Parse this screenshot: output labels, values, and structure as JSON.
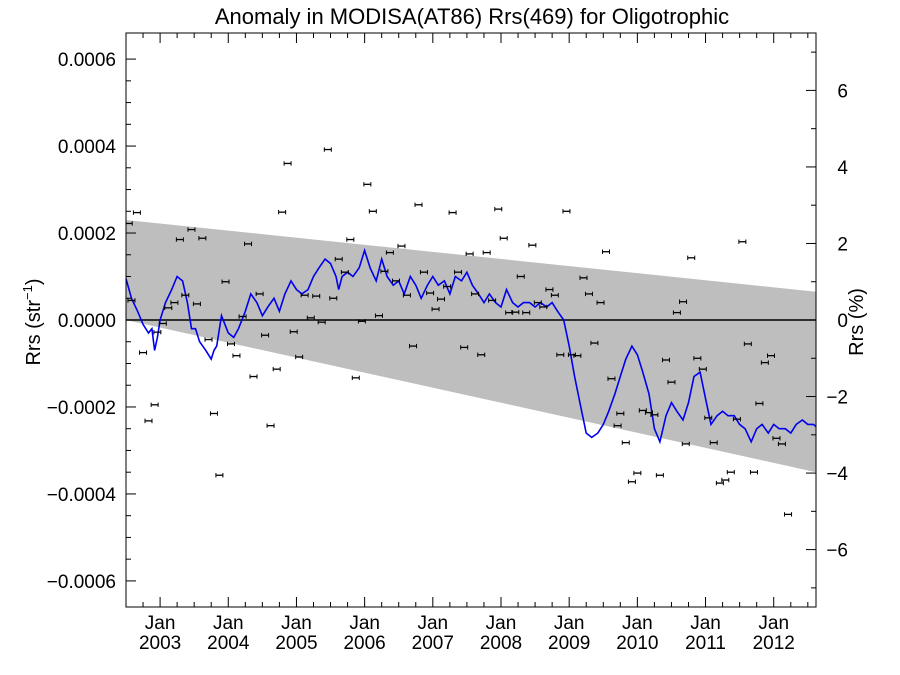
{
  "chart_data": {
    "type": "scatter",
    "title": "Anomaly in MODISA(AT86) Rrs(469) for Oligotrophic",
    "ylabel_left": {
      "base": "Rrs (str",
      "sup": "−1",
      "tail": ")"
    },
    "ylabel_right": "Rrs (%)",
    "xlim": [
      2002.5,
      2012.62
    ],
    "ylim_left": [
      -0.00066,
      0.00066
    ],
    "ylim_right": [
      -7.5,
      7.5
    ],
    "left_ticks": [
      {
        "value": 0.0006,
        "label": "0.0006"
      },
      {
        "value": 0.0004,
        "label": "0.0004"
      },
      {
        "value": 0.0002,
        "label": "0.0002"
      },
      {
        "value": 0.0,
        "label": "0.0000"
      },
      {
        "value": -0.0002,
        "label": "−0.0002"
      },
      {
        "value": -0.0004,
        "label": "−0.0004"
      },
      {
        "value": -0.0006,
        "label": "−0.0006"
      }
    ],
    "right_ticks": [
      {
        "value": 6,
        "label": "6"
      },
      {
        "value": 4,
        "label": "4"
      },
      {
        "value": 2,
        "label": "2"
      },
      {
        "value": 0,
        "label": "0"
      },
      {
        "value": -2,
        "label": "−2"
      },
      {
        "value": -4,
        "label": "−4"
      },
      {
        "value": -6,
        "label": "−6"
      }
    ],
    "x_ticks": [
      {
        "value": 2003.0,
        "month": "Jan",
        "year": "2003"
      },
      {
        "value": 2004.0,
        "month": "Jan",
        "year": "2004"
      },
      {
        "value": 2005.0,
        "month": "Jan",
        "year": "2005"
      },
      {
        "value": 2006.0,
        "month": "Jan",
        "year": "2006"
      },
      {
        "value": 2007.0,
        "month": "Jan",
        "year": "2007"
      },
      {
        "value": 2008.0,
        "month": "Jan",
        "year": "2008"
      },
      {
        "value": 2009.0,
        "month": "Jan",
        "year": "2009"
      },
      {
        "value": 2010.0,
        "month": "Jan",
        "year": "2010"
      },
      {
        "value": 2011.0,
        "month": "Jan",
        "year": "2011"
      },
      {
        "value": 2012.0,
        "month": "Jan",
        "year": "2012"
      }
    ],
    "zero_line": 0.0,
    "shaded_band": {
      "x": [
        2002.5,
        2012.62
      ],
      "upper": [
        0.00023,
        6.5e-05
      ],
      "lower": [
        0.0,
        -0.00035
      ]
    },
    "series": [
      {
        "kind": "points_with_errorbars",
        "points": [
          [
            2002.54,
            0.000222
          ],
          [
            2002.58,
            4.5e-05
          ],
          [
            2002.66,
            0.000247
          ],
          [
            2002.75,
            -7.5e-05
          ],
          [
            2002.83,
            -0.000232
          ],
          [
            2002.92,
            -0.000195
          ],
          [
            2002.96,
            -2.8e-05
          ],
          [
            2003.04,
            -8e-06
          ],
          [
            2003.12,
            2.8e-05
          ],
          [
            2003.21,
            4e-05
          ],
          [
            2003.29,
            0.000185
          ],
          [
            2003.37,
            5.7e-05
          ],
          [
            2003.46,
            0.000208
          ],
          [
            2003.54,
            3.7e-05
          ],
          [
            2003.62,
            0.000188
          ],
          [
            2003.71,
            -4.5e-05
          ],
          [
            2003.79,
            -0.000215
          ],
          [
            2003.87,
            -0.000357
          ],
          [
            2003.96,
            8.8e-05
          ],
          [
            2004.04,
            -5.5e-05
          ],
          [
            2004.12,
            -8.2e-05
          ],
          [
            2004.21,
            8e-06
          ],
          [
            2004.29,
            0.000175
          ],
          [
            2004.37,
            -0.00013
          ],
          [
            2004.46,
            6e-05
          ],
          [
            2004.54,
            -3.5e-05
          ],
          [
            2004.62,
            -0.000243
          ],
          [
            2004.71,
            -0.000113
          ],
          [
            2004.79,
            0.000248
          ],
          [
            2004.87,
            0.00036
          ],
          [
            2004.96,
            -2.7e-05
          ],
          [
            2005.04,
            -8.5e-05
          ],
          [
            2005.12,
            5.7e-05
          ],
          [
            2005.21,
            5e-06
          ],
          [
            2005.29,
            5.5e-05
          ],
          [
            2005.37,
            -5e-06
          ],
          [
            2005.46,
            0.000392
          ],
          [
            2005.54,
            5e-05
          ],
          [
            2005.62,
            0.00014
          ],
          [
            2005.71,
            0.00011
          ],
          [
            2005.79,
            0.000185
          ],
          [
            2005.87,
            -0.000133
          ],
          [
            2005.96,
            -3e-06
          ],
          [
            2006.04,
            0.000312
          ],
          [
            2006.12,
            0.00025
          ],
          [
            2006.21,
            1e-05
          ],
          [
            2006.29,
            0.000112
          ],
          [
            2006.37,
            0.000155
          ],
          [
            2006.46,
            9e-05
          ],
          [
            2006.54,
            0.00017
          ],
          [
            2006.62,
            5.7e-05
          ],
          [
            2006.71,
            -6e-05
          ],
          [
            2006.79,
            0.000265
          ],
          [
            2006.87,
            0.00011
          ],
          [
            2006.96,
            6.2e-05
          ],
          [
            2007.04,
            2.5e-05
          ],
          [
            2007.12,
            4.8e-05
          ],
          [
            2007.21,
            7.7e-05
          ],
          [
            2007.29,
            0.000247
          ],
          [
            2007.37,
            0.00011
          ],
          [
            2007.46,
            -6.3e-05
          ],
          [
            2007.54,
            0.000152
          ],
          [
            2007.62,
            6e-05
          ],
          [
            2007.71,
            -8e-05
          ],
          [
            2007.79,
            0.000155
          ],
          [
            2007.87,
            4.5e-05
          ],
          [
            2007.96,
            0.000255
          ],
          [
            2008.04,
            0.000188
          ],
          [
            2008.12,
            1.7e-05
          ],
          [
            2008.21,
            1.8e-05
          ],
          [
            2008.29,
            0.0001
          ],
          [
            2008.37,
            1.7e-05
          ],
          [
            2008.46,
            0.000172
          ],
          [
            2008.54,
            4e-05
          ],
          [
            2008.62,
            3e-05
          ],
          [
            2008.71,
            7e-05
          ],
          [
            2008.79,
            5.7e-05
          ],
          [
            2008.87,
            -8e-05
          ],
          [
            2008.96,
            0.00025
          ],
          [
            2009.04,
            -8e-05
          ],
          [
            2009.12,
            -8.2e-05
          ],
          [
            2009.21,
            9.7e-05
          ],
          [
            2009.29,
            6e-05
          ],
          [
            2009.37,
            -5.3e-05
          ],
          [
            2009.46,
            4e-05
          ],
          [
            2009.54,
            0.000157
          ],
          [
            2009.62,
            -0.000135
          ],
          [
            2009.71,
            -0.000243
          ],
          [
            2009.75,
            -0.000215
          ],
          [
            2009.83,
            -0.000282
          ],
          [
            2009.92,
            -0.000372
          ],
          [
            2010.0,
            -0.000352
          ],
          [
            2010.08,
            -0.000208
          ],
          [
            2010.17,
            -0.000213
          ],
          [
            2010.25,
            -0.000218
          ],
          [
            2010.33,
            -0.000357
          ],
          [
            2010.42,
            -9.2e-05
          ],
          [
            2010.5,
            -0.000143
          ],
          [
            2010.58,
            1.7e-05
          ],
          [
            2010.67,
            4.2e-05
          ],
          [
            2010.71,
            -0.000285
          ],
          [
            2010.79,
            0.000143
          ],
          [
            2010.88,
            -8.8e-05
          ],
          [
            2010.96,
            -0.000113
          ],
          [
            2011.04,
            -0.000225
          ],
          [
            2011.12,
            -0.000282
          ],
          [
            2011.21,
            -0.000375
          ],
          [
            2011.29,
            -0.000368
          ],
          [
            2011.37,
            -0.00035
          ],
          [
            2011.46,
            -0.000228
          ],
          [
            2011.54,
            0.00018
          ],
          [
            2011.62,
            -5.5e-05
          ],
          [
            2011.71,
            -0.00035
          ],
          [
            2011.79,
            -0.000192
          ],
          [
            2011.87,
            -9.8e-05
          ],
          [
            2011.96,
            -8.2e-05
          ],
          [
            2012.04,
            -0.000272
          ],
          [
            2012.12,
            -0.000285
          ],
          [
            2012.21,
            -0.000447
          ]
        ]
      },
      {
        "kind": "smoothed_line",
        "color": "#0000ee",
        "points": [
          [
            2002.5,
            9.5e-05
          ],
          [
            2002.58,
            5e-05
          ],
          [
            2002.67,
            2e-05
          ],
          [
            2002.75,
            -1e-05
          ],
          [
            2002.83,
            -3e-05
          ],
          [
            2002.88,
            -2e-05
          ],
          [
            2002.92,
            -7e-05
          ],
          [
            2002.96,
            -4e-05
          ],
          [
            2003.0,
            0.0
          ],
          [
            2003.04,
            2e-05
          ],
          [
            2003.08,
            4e-05
          ],
          [
            2003.17,
            7e-05
          ],
          [
            2003.25,
            0.0001
          ],
          [
            2003.33,
            9e-05
          ],
          [
            2003.4,
            4e-05
          ],
          [
            2003.46,
            -2e-05
          ],
          [
            2003.52,
            -2e-05
          ],
          [
            2003.58,
            -5e-05
          ],
          [
            2003.67,
            -7e-05
          ],
          [
            2003.75,
            -9e-05
          ],
          [
            2003.79,
            -7e-05
          ],
          [
            2003.83,
            -6e-05
          ],
          [
            2003.9,
            1e-05
          ],
          [
            2004.0,
            -3e-05
          ],
          [
            2004.08,
            -4e-05
          ],
          [
            2004.15,
            -2e-05
          ],
          [
            2004.25,
            2e-05
          ],
          [
            2004.33,
            6e-05
          ],
          [
            2004.42,
            4e-05
          ],
          [
            2004.5,
            1e-05
          ],
          [
            2004.58,
            3e-05
          ],
          [
            2004.67,
            5e-05
          ],
          [
            2004.75,
            2e-05
          ],
          [
            2004.83,
            6e-05
          ],
          [
            2004.92,
            9e-05
          ],
          [
            2005.0,
            7e-05
          ],
          [
            2005.08,
            6e-05
          ],
          [
            2005.17,
            7e-05
          ],
          [
            2005.25,
            0.0001
          ],
          [
            2005.33,
            0.00012
          ],
          [
            2005.42,
            0.00014
          ],
          [
            2005.5,
            0.00013
          ],
          [
            2005.58,
            0.0001
          ],
          [
            2005.62,
            7e-05
          ],
          [
            2005.67,
            0.0001
          ],
          [
            2005.75,
            0.00011
          ],
          [
            2005.83,
            0.0001
          ],
          [
            2005.92,
            0.00012
          ],
          [
            2006.0,
            0.00016
          ],
          [
            2006.08,
            0.00012
          ],
          [
            2006.17,
            9e-05
          ],
          [
            2006.25,
            0.00014
          ],
          [
            2006.33,
            0.0001
          ],
          [
            2006.42,
            8e-05
          ],
          [
            2006.5,
            9e-05
          ],
          [
            2006.58,
            6e-05
          ],
          [
            2006.67,
            0.0001
          ],
          [
            2006.75,
            8e-05
          ],
          [
            2006.83,
            5e-05
          ],
          [
            2006.92,
            8e-05
          ],
          [
            2007.0,
            0.0001
          ],
          [
            2007.08,
            8e-05
          ],
          [
            2007.17,
            9e-05
          ],
          [
            2007.25,
            6e-05
          ],
          [
            2007.33,
            0.0001
          ],
          [
            2007.42,
            9e-05
          ],
          [
            2007.5,
            0.00011
          ],
          [
            2007.58,
            8e-05
          ],
          [
            2007.67,
            6e-05
          ],
          [
            2007.75,
            4e-05
          ],
          [
            2007.83,
            6e-05
          ],
          [
            2007.92,
            4e-05
          ],
          [
            2008.0,
            3e-05
          ],
          [
            2008.08,
            7e-05
          ],
          [
            2008.17,
            4e-05
          ],
          [
            2008.25,
            3e-05
          ],
          [
            2008.33,
            4e-05
          ],
          [
            2008.42,
            4e-05
          ],
          [
            2008.5,
            3e-05
          ],
          [
            2008.58,
            4e-05
          ],
          [
            2008.67,
            3e-05
          ],
          [
            2008.75,
            4e-05
          ],
          [
            2008.83,
            2e-05
          ],
          [
            2008.92,
            0.0
          ],
          [
            2009.0,
            -6e-05
          ],
          [
            2009.08,
            -0.00013
          ],
          [
            2009.17,
            -0.0002
          ],
          [
            2009.25,
            -0.00026
          ],
          [
            2009.33,
            -0.00027
          ],
          [
            2009.42,
            -0.00026
          ],
          [
            2009.5,
            -0.00024
          ],
          [
            2009.58,
            -0.00021
          ],
          [
            2009.67,
            -0.00017
          ],
          [
            2009.75,
            -0.00013
          ],
          [
            2009.83,
            -9e-05
          ],
          [
            2009.92,
            -6e-05
          ],
          [
            2010.0,
            -8e-05
          ],
          [
            2010.08,
            -0.00012
          ],
          [
            2010.17,
            -0.00017
          ],
          [
            2010.25,
            -0.00025
          ],
          [
            2010.33,
            -0.00028
          ],
          [
            2010.42,
            -0.00022
          ],
          [
            2010.5,
            -0.00019
          ],
          [
            2010.58,
            -0.00021
          ],
          [
            2010.67,
            -0.00023
          ],
          [
            2010.75,
            -0.00019
          ],
          [
            2010.83,
            -0.00013
          ],
          [
            2010.92,
            -0.00012
          ],
          [
            2011.0,
            -0.00018
          ],
          [
            2011.08,
            -0.00024
          ],
          [
            2011.17,
            -0.00022
          ],
          [
            2011.25,
            -0.00021
          ],
          [
            2011.33,
            -0.00022
          ],
          [
            2011.42,
            -0.00022
          ],
          [
            2011.5,
            -0.00024
          ],
          [
            2011.58,
            -0.00025
          ],
          [
            2011.67,
            -0.00028
          ],
          [
            2011.75,
            -0.00025
          ],
          [
            2011.83,
            -0.00024
          ],
          [
            2011.92,
            -0.00026
          ],
          [
            2012.0,
            -0.00024
          ],
          [
            2012.08,
            -0.00025
          ],
          [
            2012.17,
            -0.00025
          ],
          [
            2012.25,
            -0.00026
          ],
          [
            2012.33,
            -0.00024
          ],
          [
            2012.42,
            -0.00023
          ],
          [
            2012.5,
            -0.00024
          ],
          [
            2012.58,
            -0.00024
          ],
          [
            2012.62,
            -0.000245
          ]
        ]
      }
    ],
    "grid": false,
    "colors": {
      "band": "#bebebe",
      "line": "#0000ee",
      "points": "#000000"
    }
  }
}
